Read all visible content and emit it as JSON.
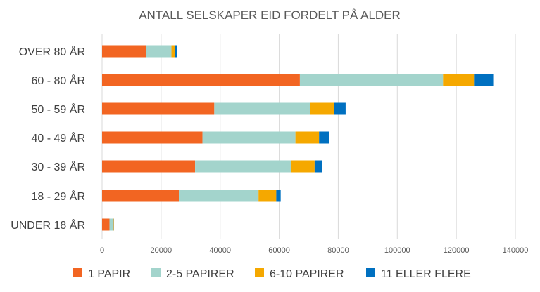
{
  "chart_data": {
    "type": "bar",
    "orientation": "horizontal",
    "stacked": true,
    "title": "ANTALL SELSKAPER EID FORDELT PÅ ALDER",
    "categories": [
      "OVER 80 ÅR",
      "60 - 80 ÅR",
      "50 - 59 ÅR",
      "40 - 49 ÅR",
      "30 - 39 ÅR",
      "18 - 29 ÅR",
      "UNDER 18 ÅR"
    ],
    "series": [
      {
        "name": "1 PAPIR",
        "color": "#f26522",
        "values": [
          15000,
          67000,
          38000,
          34000,
          31500,
          26000,
          2500
        ]
      },
      {
        "name": "2-5 PAPIRER",
        "color": "#a3d4cc",
        "values": [
          8500,
          48500,
          32500,
          31500,
          32500,
          27000,
          1300
        ]
      },
      {
        "name": "6-10 PAPIRER",
        "color": "#f5a800",
        "values": [
          1200,
          10500,
          8000,
          8000,
          8000,
          6000,
          150
        ]
      },
      {
        "name": "11 ELLER FLERE",
        "color": "#0070c0",
        "values": [
          800,
          6500,
          4000,
          3500,
          2500,
          1500,
          50
        ]
      }
    ],
    "x_ticks": [
      "0",
      "20000",
      "40000",
      "60000",
      "80000",
      "100000",
      "120000",
      "140000"
    ],
    "xlim": [
      0,
      140000
    ],
    "grid": true,
    "legend_position": "bottom"
  }
}
